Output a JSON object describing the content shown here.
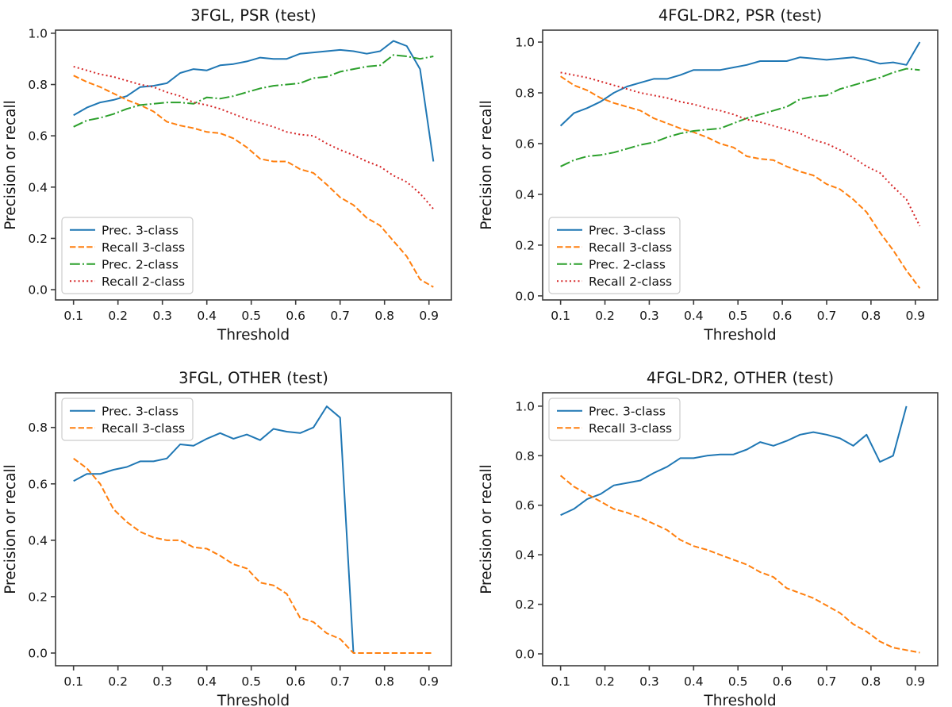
{
  "figure": {
    "background": "#ffffff",
    "text_color": "#151515",
    "spine_color": "#3c3c3c",
    "legend_border_color": "#cccccc",
    "legend_bg_color": "#ffffff"
  },
  "colors": {
    "prec_3class": "#1f77b4",
    "recall_3class": "#ff7f0e",
    "prec_2class": "#2ca02c",
    "recall_2class": "#d62728"
  },
  "chart_data": [
    {
      "type": "line",
      "title": "3FGL, PSR (test)",
      "xlabel": "Threshold",
      "ylabel": "Precision or recall",
      "legend_position": "lower-left",
      "grid": false,
      "xlim": [
        0.0595,
        0.9505
      ],
      "ylim": [
        -0.04,
        1.012
      ],
      "xticks": [
        0.1,
        0.2,
        0.3,
        0.4,
        0.5,
        0.6,
        0.7,
        0.8,
        0.9
      ],
      "yticks": [
        0.0,
        0.2,
        0.4,
        0.6,
        0.8,
        1.0
      ],
      "x": [
        0.1,
        0.13,
        0.16,
        0.19,
        0.22,
        0.25,
        0.28,
        0.31,
        0.34,
        0.37,
        0.4,
        0.43,
        0.46,
        0.49,
        0.52,
        0.55,
        0.58,
        0.61,
        0.64,
        0.67,
        0.7,
        0.73,
        0.76,
        0.79,
        0.82,
        0.85,
        0.88,
        0.91
      ],
      "series": [
        {
          "name": "Prec. 3-class",
          "color": "#1f77b4",
          "style": "solid",
          "values": [
            0.68,
            0.71,
            0.73,
            0.74,
            0.755,
            0.79,
            0.795,
            0.805,
            0.845,
            0.86,
            0.855,
            0.875,
            0.88,
            0.89,
            0.905,
            0.9,
            0.9,
            0.92,
            0.925,
            0.93,
            0.935,
            0.93,
            0.92,
            0.93,
            0.97,
            0.95,
            0.86,
            0.5
          ]
        },
        {
          "name": "Recall 3-class",
          "color": "#ff7f0e",
          "style": "dashed",
          "values": [
            0.835,
            0.81,
            0.79,
            0.765,
            0.74,
            0.72,
            0.695,
            0.655,
            0.64,
            0.63,
            0.615,
            0.61,
            0.59,
            0.555,
            0.51,
            0.5,
            0.5,
            0.47,
            0.455,
            0.41,
            0.36,
            0.33,
            0.28,
            0.25,
            0.19,
            0.13,
            0.04,
            0.01
          ]
        },
        {
          "name": "Prec. 2-class",
          "color": "#2ca02c",
          "style": "dashdot",
          "values": [
            0.635,
            0.66,
            0.67,
            0.685,
            0.705,
            0.72,
            0.725,
            0.73,
            0.73,
            0.725,
            0.75,
            0.745,
            0.755,
            0.77,
            0.785,
            0.795,
            0.8,
            0.805,
            0.825,
            0.83,
            0.85,
            0.86,
            0.87,
            0.875,
            0.915,
            0.91,
            0.9,
            0.91
          ]
        },
        {
          "name": "Recall 2-class",
          "color": "#d62728",
          "style": "dotted",
          "values": [
            0.87,
            0.855,
            0.84,
            0.83,
            0.815,
            0.8,
            0.79,
            0.77,
            0.755,
            0.73,
            0.72,
            0.705,
            0.685,
            0.665,
            0.65,
            0.635,
            0.615,
            0.605,
            0.6,
            0.57,
            0.545,
            0.525,
            0.5,
            0.48,
            0.445,
            0.42,
            0.375,
            0.315
          ]
        }
      ]
    },
    {
      "type": "line",
      "title": "4FGL-DR2, PSR (test)",
      "xlabel": "Threshold",
      "ylabel": "Precision or recall",
      "legend_position": "lower-left",
      "grid": false,
      "xlim": [
        0.0595,
        0.9505
      ],
      "ylim": [
        -0.016,
        1.047
      ],
      "xticks": [
        0.1,
        0.2,
        0.3,
        0.4,
        0.5,
        0.6,
        0.7,
        0.8,
        0.9
      ],
      "yticks": [
        0.0,
        0.2,
        0.4,
        0.6,
        0.8,
        1.0
      ],
      "x": [
        0.1,
        0.13,
        0.16,
        0.19,
        0.22,
        0.25,
        0.28,
        0.31,
        0.34,
        0.37,
        0.4,
        0.43,
        0.46,
        0.49,
        0.52,
        0.55,
        0.58,
        0.61,
        0.64,
        0.67,
        0.7,
        0.73,
        0.76,
        0.79,
        0.82,
        0.85,
        0.88,
        0.91
      ],
      "series": [
        {
          "name": "Prec. 3-class",
          "color": "#1f77b4",
          "style": "solid",
          "values": [
            0.67,
            0.72,
            0.74,
            0.765,
            0.8,
            0.825,
            0.84,
            0.855,
            0.855,
            0.87,
            0.89,
            0.89,
            0.89,
            0.9,
            0.91,
            0.925,
            0.925,
            0.925,
            0.94,
            0.935,
            0.93,
            0.935,
            0.94,
            0.93,
            0.915,
            0.92,
            0.91,
            1.0
          ]
        },
        {
          "name": "Recall 3-class",
          "color": "#ff7f0e",
          "style": "dashed",
          "values": [
            0.865,
            0.83,
            0.81,
            0.78,
            0.76,
            0.745,
            0.73,
            0.7,
            0.68,
            0.66,
            0.645,
            0.625,
            0.6,
            0.585,
            0.55,
            0.54,
            0.535,
            0.51,
            0.49,
            0.475,
            0.44,
            0.42,
            0.38,
            0.33,
            0.25,
            0.18,
            0.1,
            0.03
          ]
        },
        {
          "name": "Prec. 2-class",
          "color": "#2ca02c",
          "style": "dashdot",
          "values": [
            0.51,
            0.535,
            0.55,
            0.555,
            0.565,
            0.58,
            0.595,
            0.605,
            0.625,
            0.64,
            0.65,
            0.655,
            0.66,
            0.68,
            0.7,
            0.715,
            0.73,
            0.745,
            0.775,
            0.785,
            0.79,
            0.815,
            0.83,
            0.845,
            0.86,
            0.88,
            0.895,
            0.89
          ]
        },
        {
          "name": "Recall 2-class",
          "color": "#d62728",
          "style": "dotted",
          "values": [
            0.88,
            0.87,
            0.86,
            0.845,
            0.83,
            0.815,
            0.8,
            0.79,
            0.78,
            0.765,
            0.755,
            0.74,
            0.73,
            0.715,
            0.695,
            0.685,
            0.67,
            0.655,
            0.64,
            0.615,
            0.6,
            0.575,
            0.545,
            0.51,
            0.485,
            0.43,
            0.38,
            0.275
          ]
        }
      ]
    },
    {
      "type": "line",
      "title": "3FGL, OTHER (test)",
      "xlabel": "Threshold",
      "ylabel": "Precision or recall",
      "legend_position": "upper-left",
      "grid": false,
      "xlim": [
        0.0595,
        0.9505
      ],
      "ylim": [
        -0.045,
        0.923
      ],
      "xticks": [
        0.1,
        0.2,
        0.3,
        0.4,
        0.5,
        0.6,
        0.7,
        0.8,
        0.9
      ],
      "yticks": [
        0.0,
        0.2,
        0.4,
        0.6,
        0.8
      ],
      "x": [
        0.1,
        0.13,
        0.16,
        0.19,
        0.22,
        0.25,
        0.28,
        0.31,
        0.34,
        0.37,
        0.4,
        0.43,
        0.46,
        0.49,
        0.52,
        0.55,
        0.58,
        0.61,
        0.64,
        0.67,
        0.7,
        0.73,
        0.76,
        0.79,
        0.82,
        0.85,
        0.88,
        0.91
      ],
      "series": [
        {
          "name": "Prec. 3-class",
          "color": "#1f77b4",
          "style": "solid",
          "values": [
            0.61,
            0.635,
            0.635,
            0.65,
            0.66,
            0.68,
            0.68,
            0.69,
            0.74,
            0.735,
            0.76,
            0.78,
            0.76,
            0.775,
            0.755,
            0.795,
            0.785,
            0.78,
            0.8,
            0.875,
            0.835,
            0.0,
            null,
            null,
            null,
            null,
            null,
            null
          ]
        },
        {
          "name": "Recall 3-class",
          "color": "#ff7f0e",
          "style": "dashed",
          "values": [
            0.69,
            0.655,
            0.6,
            0.51,
            0.465,
            0.43,
            0.41,
            0.4,
            0.4,
            0.375,
            0.37,
            0.345,
            0.315,
            0.3,
            0.25,
            0.24,
            0.21,
            0.125,
            0.11,
            0.07,
            0.05,
            0.0,
            0.0,
            0.0,
            0.0,
            0.0,
            0.0,
            0.0
          ]
        }
      ]
    },
    {
      "type": "line",
      "title": "4FGL-DR2, OTHER (test)",
      "xlabel": "Threshold",
      "ylabel": "Precision or recall",
      "legend_position": "upper-left",
      "grid": false,
      "xlim": [
        0.0595,
        0.9505
      ],
      "ylim": [
        -0.048,
        1.054
      ],
      "xticks": [
        0.1,
        0.2,
        0.3,
        0.4,
        0.5,
        0.6,
        0.7,
        0.8,
        0.9
      ],
      "yticks": [
        0.0,
        0.2,
        0.4,
        0.6,
        0.8,
        1.0
      ],
      "x": [
        0.1,
        0.13,
        0.16,
        0.19,
        0.22,
        0.25,
        0.28,
        0.31,
        0.34,
        0.37,
        0.4,
        0.43,
        0.46,
        0.49,
        0.52,
        0.55,
        0.58,
        0.61,
        0.64,
        0.67,
        0.7,
        0.73,
        0.76,
        0.79,
        0.82,
        0.85,
        0.88,
        0.91
      ],
      "series": [
        {
          "name": "Prec. 3-class",
          "color": "#1f77b4",
          "style": "solid",
          "values": [
            0.56,
            0.585,
            0.625,
            0.645,
            0.68,
            0.69,
            0.7,
            0.73,
            0.755,
            0.79,
            0.79,
            0.8,
            0.805,
            0.805,
            0.825,
            0.855,
            0.84,
            0.86,
            0.885,
            0.895,
            0.885,
            0.87,
            0.84,
            0.885,
            0.775,
            0.8,
            1.0,
            null
          ]
        },
        {
          "name": "Recall 3-class",
          "color": "#ff7f0e",
          "style": "dashed",
          "values": [
            0.72,
            0.675,
            0.645,
            0.615,
            0.585,
            0.57,
            0.55,
            0.525,
            0.5,
            0.46,
            0.435,
            0.42,
            0.4,
            0.38,
            0.36,
            0.33,
            0.31,
            0.265,
            0.245,
            0.225,
            0.195,
            0.165,
            0.12,
            0.09,
            0.05,
            0.025,
            0.015,
            0.005
          ]
        }
      ]
    }
  ]
}
